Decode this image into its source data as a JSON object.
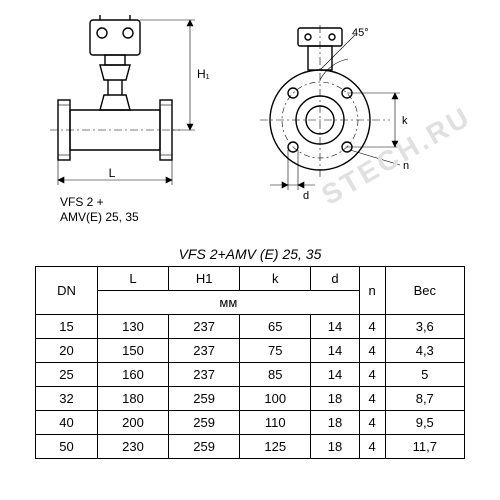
{
  "product_label_line1": "VFS 2 +",
  "product_label_line2": "AMV(E) 25, 35",
  "table_title": "VFS 2+AMV (E)  25, 35",
  "dims_label": "мм",
  "headers": {
    "dn": "DN",
    "l": "L",
    "h1": "H1",
    "k": "k",
    "d": "d",
    "n": "n",
    "weight": "Вес"
  },
  "dim_labels": {
    "L": "L",
    "H1": "H₁",
    "k": "k",
    "d": "d",
    "n": "n",
    "angle": "45°"
  },
  "rows": [
    {
      "dn": "15",
      "l": "130",
      "h1": "237",
      "k": "65",
      "d": "14",
      "n": "4",
      "weight": "3,6"
    },
    {
      "dn": "20",
      "l": "150",
      "h1": "237",
      "k": "75",
      "d": "14",
      "n": "4",
      "weight": "4,3"
    },
    {
      "dn": "25",
      "l": "160",
      "h1": "237",
      "k": "85",
      "d": "14",
      "n": "4",
      "weight": "5"
    },
    {
      "dn": "32",
      "l": "180",
      "h1": "259",
      "k": "100",
      "d": "18",
      "n": "4",
      "weight": "8,7"
    },
    {
      "dn": "40",
      "l": "200",
      "h1": "259",
      "k": "110",
      "d": "18",
      "n": "4",
      "weight": "9,5"
    },
    {
      "dn": "50",
      "l": "230",
      "h1": "259",
      "k": "125",
      "d": "18",
      "n": "4",
      "weight": "11,7"
    }
  ],
  "styling": {
    "stroke": "#000000",
    "background": "#ffffff",
    "line_width_main": 1.4,
    "line_width_thin": 0.6,
    "font_size_table": 13,
    "font_size_title": 14,
    "watermark_text": "STECH.RU",
    "watermark_color": "#e0e0e0"
  }
}
